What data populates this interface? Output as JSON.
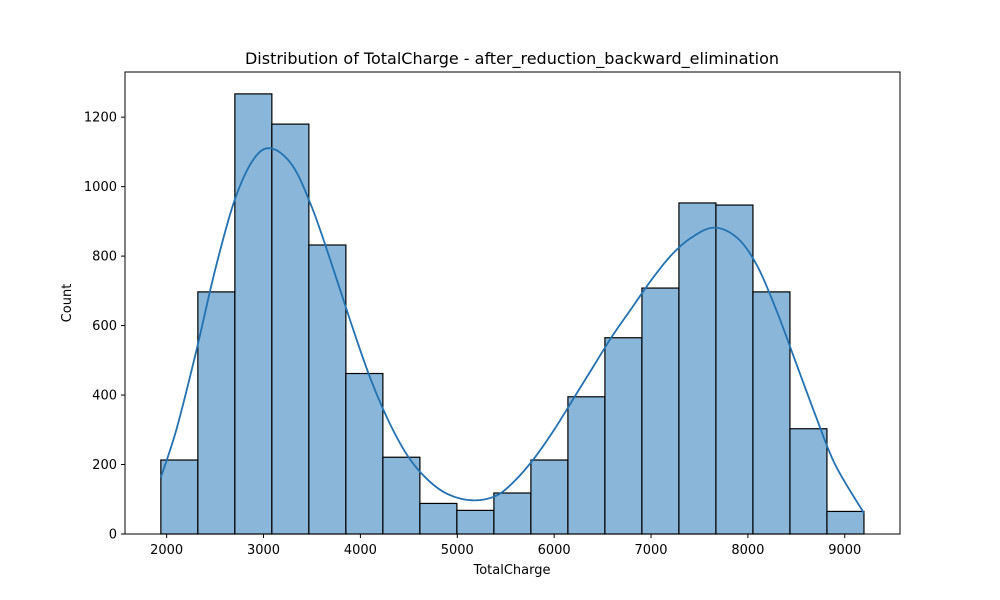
{
  "chart_data": {
    "type": "bar",
    "title": "Distribution of TotalCharge - after_reduction_backward_elimination",
    "xlabel": "TotalCharge",
    "ylabel": "Count",
    "xlim": [
      1570,
      9570
    ],
    "ylim": [
      0,
      1330
    ],
    "x_ticks": [
      2000,
      3000,
      4000,
      5000,
      6000,
      7000,
      8000,
      9000
    ],
    "y_ticks": [
      0,
      200,
      400,
      600,
      800,
      1000,
      1200
    ],
    "bin_edges": [
      1940,
      2322,
      2704,
      3086,
      3468,
      3850,
      4232,
      4614,
      4996,
      5378,
      5760,
      6142,
      6524,
      6906,
      7288,
      7670,
      8052,
      8434,
      8816,
      9198
    ],
    "counts": [
      213,
      697,
      1267,
      1180,
      832,
      462,
      221,
      88,
      68,
      118,
      213,
      395,
      565,
      708,
      953,
      947,
      697,
      303,
      65
    ],
    "kde": {
      "x": [
        1940,
        2100,
        2300,
        2500,
        2700,
        2900,
        3080,
        3300,
        3500,
        3700,
        3900,
        4100,
        4300,
        4500,
        4700,
        4900,
        5150,
        5400,
        5600,
        5800,
        6000,
        6200,
        6400,
        6600,
        6800,
        7000,
        7200,
        7400,
        7650,
        7900,
        8100,
        8300,
        8500,
        8700,
        8900,
        9198
      ],
      "y": [
        163,
        300,
        520,
        760,
        960,
        1080,
        1110,
        1060,
        940,
        780,
        610,
        450,
        320,
        220,
        155,
        115,
        97,
        110,
        155,
        220,
        300,
        390,
        480,
        570,
        650,
        730,
        800,
        850,
        882,
        850,
        770,
        640,
        490,
        340,
        200,
        60
      ]
    },
    "grid": false,
    "legend": "none",
    "colors": {
      "bar_fill": "#89b6d9",
      "bar_edge": "#000000",
      "kde_line": "#2271b1"
    }
  }
}
